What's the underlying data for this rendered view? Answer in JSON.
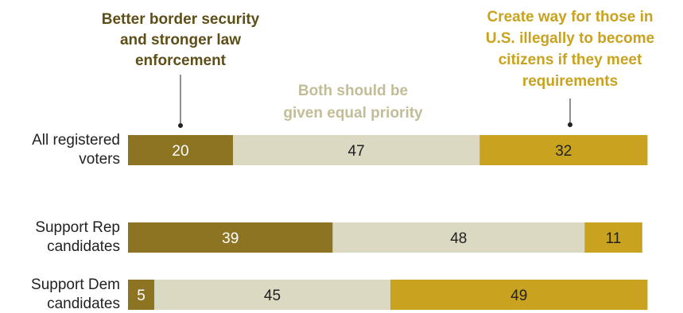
{
  "chart_data": {
    "type": "bar",
    "orientation": "horizontal",
    "stacked": true,
    "categories": [
      "All registered voters",
      "Support Rep candidates",
      "Support Dem candidates"
    ],
    "category_lines": [
      [
        "All registered",
        "voters"
      ],
      [
        "Support Rep",
        "candidates"
      ],
      [
        "Support Dem",
        "candidates"
      ]
    ],
    "series": [
      {
        "name": "Better border security and stronger law enforcement",
        "label_lines": [
          "Better border security",
          "and stronger law",
          "enforcement"
        ],
        "values": [
          20,
          39,
          5
        ],
        "color": "#8c7423",
        "label_color": "#5e4e17",
        "text_color": "#ffffff"
      },
      {
        "name": "Both should be given equal priority",
        "label_lines": [
          "Both should be",
          "given equal priority"
        ],
        "values": [
          47,
          48,
          45
        ],
        "color": "#dcd9c2",
        "label_color": "#c2bd97",
        "text_color": "#222222"
      },
      {
        "name": "Create way for those in U.S. illegally to become citizens if they meet requirements",
        "label_lines": [
          "Create way for those in",
          "U.S. illegally to become",
          "citizens if they meet",
          "requirements"
        ],
        "values": [
          32,
          11,
          49
        ],
        "color": "#c9a21f",
        "label_color": "#c9a21f",
        "text_color": "#222222"
      }
    ],
    "xlim": [
      0,
      100
    ],
    "legend": "top",
    "grid": false
  }
}
